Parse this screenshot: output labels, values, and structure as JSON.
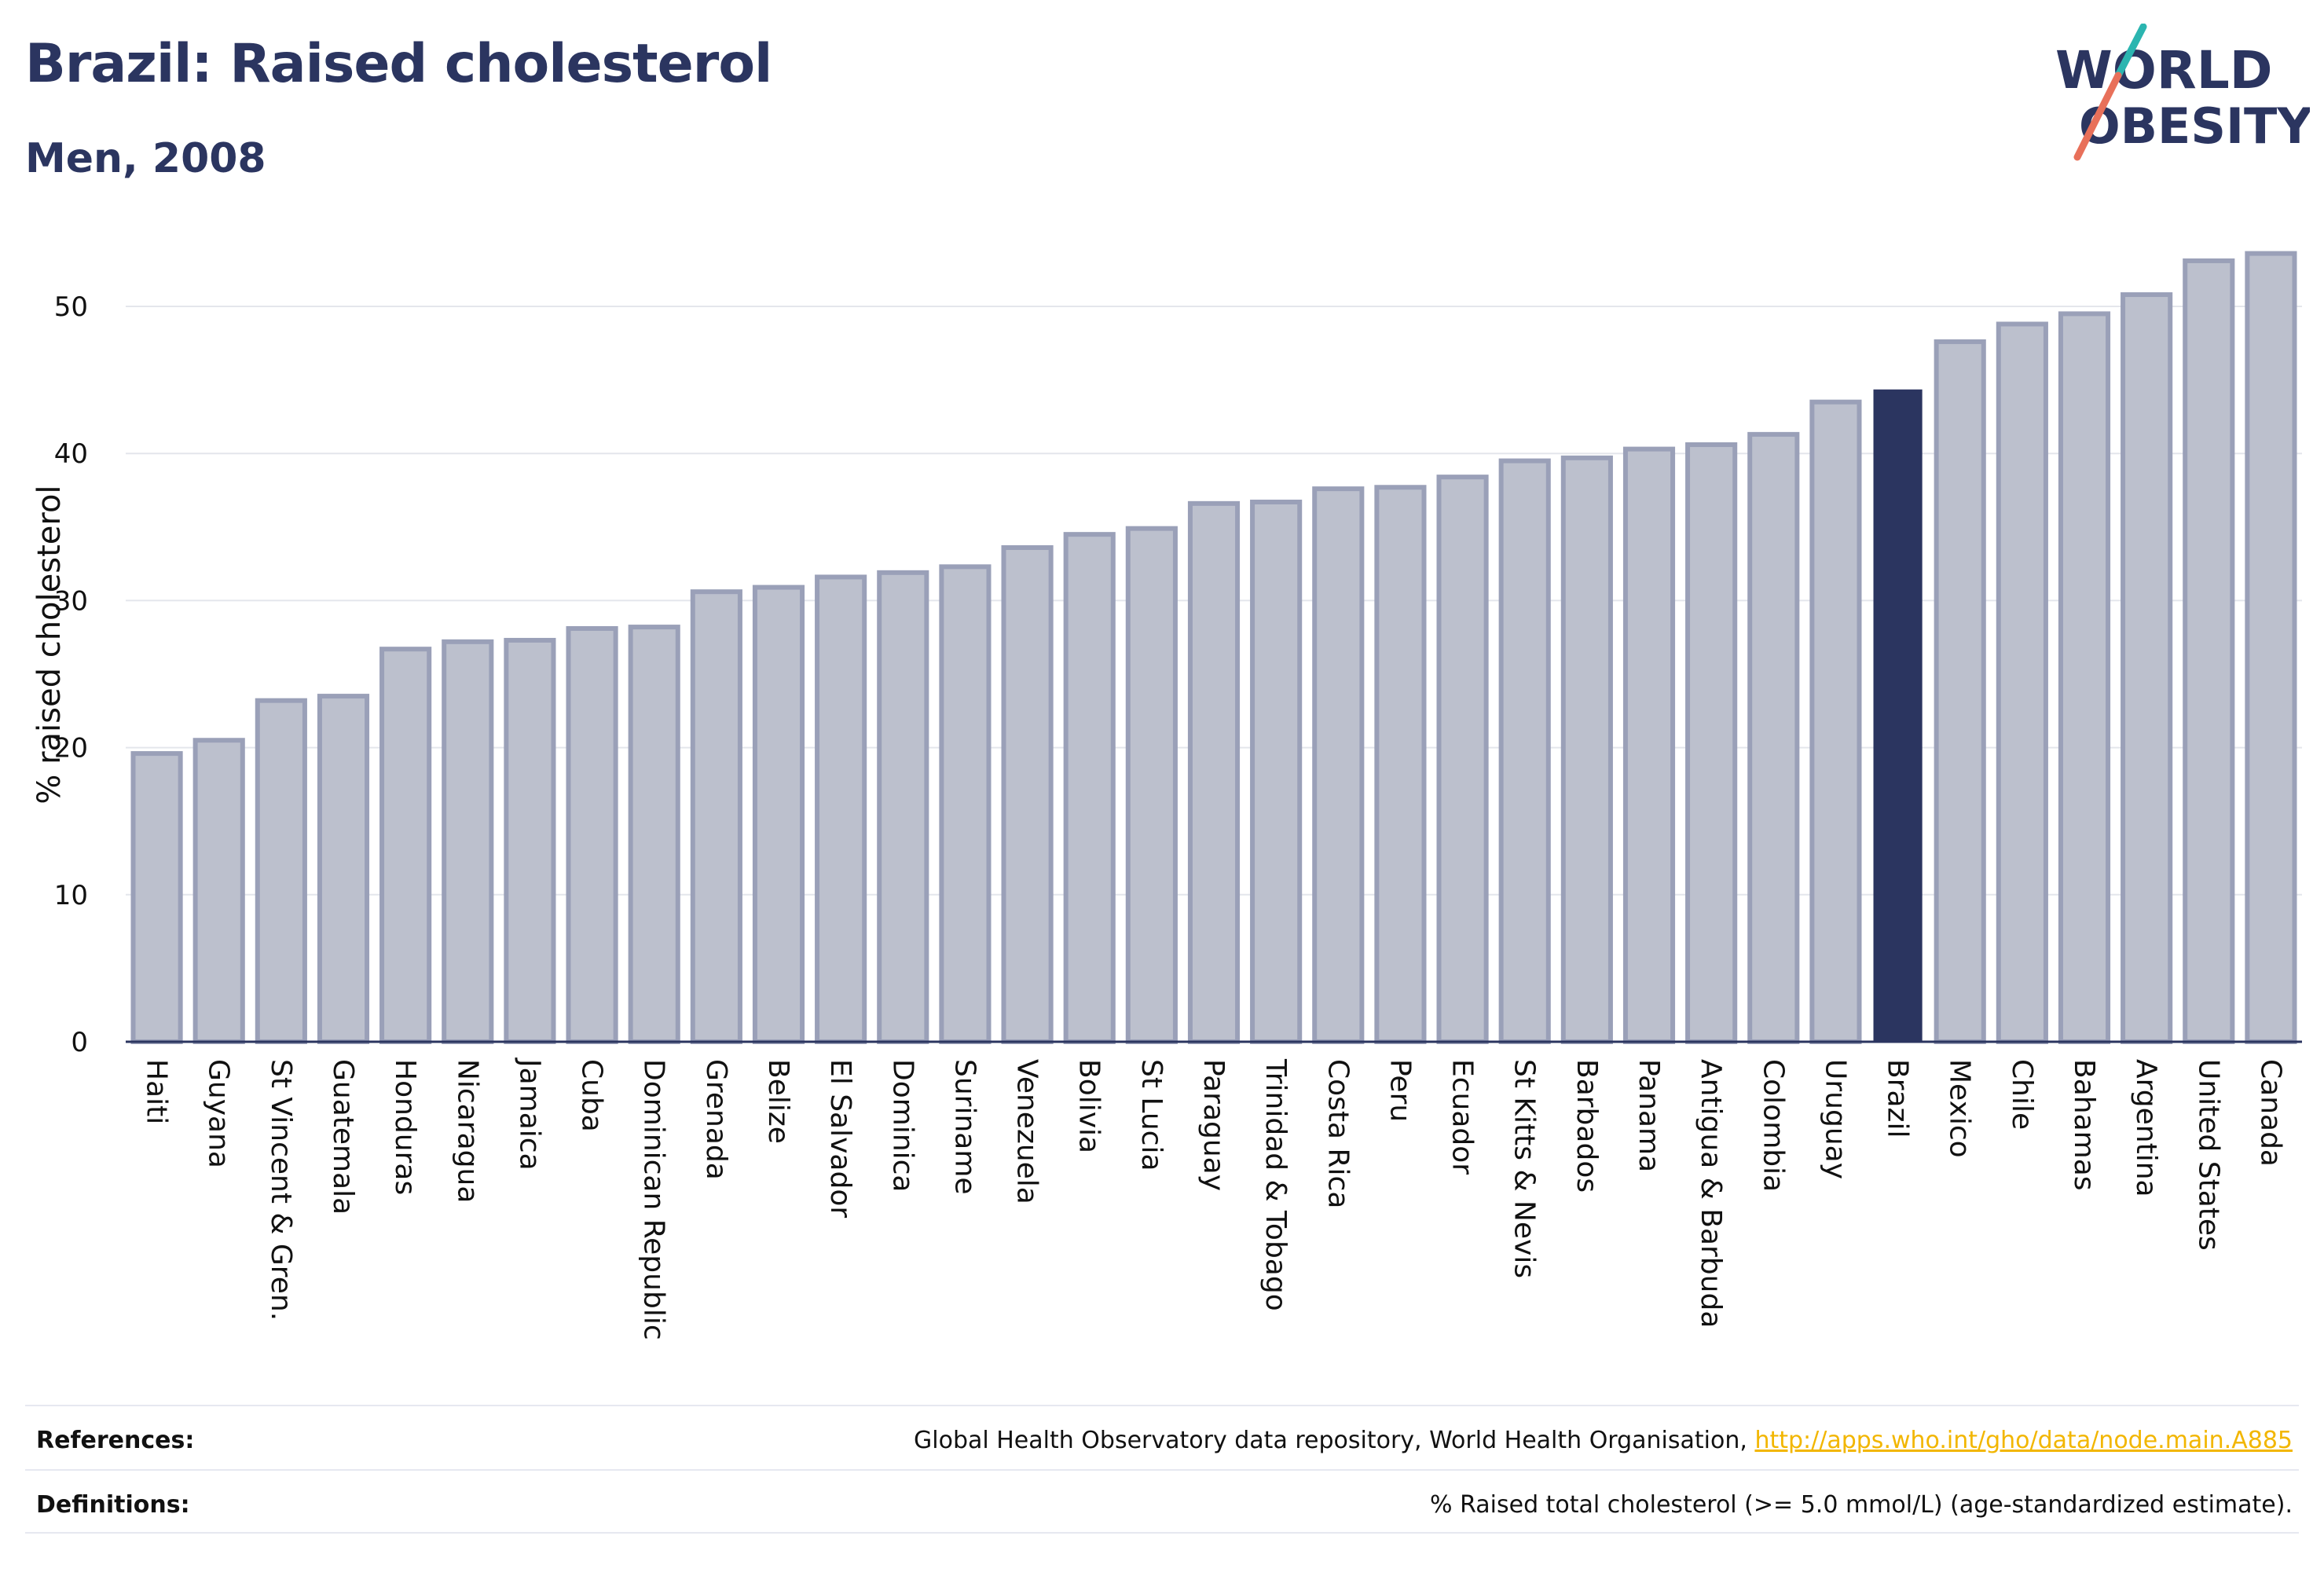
{
  "header": {
    "title": "Brazil: Raised cholesterol",
    "subtitle": "Men, 2008"
  },
  "logo": {
    "line1": "WORLD",
    "line2": "OBESITY",
    "accent_colors": [
      "#e8705a",
      "#2bb5b0"
    ]
  },
  "colors": {
    "bar_default": "#bcc0cd",
    "bar_border": "#9aa0b8",
    "bar_highlight": "#2b3560",
    "text": "#2b3560",
    "grid": "#e4e6ec",
    "link": "#f2b600"
  },
  "chart_data": {
    "type": "bar",
    "title": "",
    "xlabel": "",
    "ylabel": "% raised cholesterol",
    "ylim": [
      0,
      54
    ],
    "yticks": [
      0,
      10,
      20,
      30,
      40,
      50
    ],
    "grid": true,
    "highlight": "Brazil",
    "categories": [
      "Haiti",
      "Guyana",
      "St Vincent & Gren.",
      "Guatemala",
      "Honduras",
      "Nicaragua",
      "Jamaica",
      "Cuba",
      "Dominican Republic",
      "Grenada",
      "Belize",
      "El Salvador",
      "Dominica",
      "Suriname",
      "Venezuela",
      "Bolivia",
      "St Lucia",
      "Paraguay",
      "Trinidad & Tobago",
      "Costa Rica",
      "Peru",
      "Ecuador",
      "St Kitts & Nevis",
      "Barbados",
      "Panama",
      "Antigua & Barbuda",
      "Colombia",
      "Uruguay",
      "Brazil",
      "Mexico",
      "Chile",
      "Bahamas",
      "Argentina",
      "United States",
      "Canada"
    ],
    "values": [
      19.6,
      20.5,
      23.2,
      23.5,
      26.7,
      27.2,
      27.3,
      28.1,
      28.2,
      30.6,
      30.9,
      31.6,
      31.9,
      32.3,
      33.6,
      34.5,
      34.9,
      36.6,
      36.7,
      37.6,
      37.7,
      38.4,
      39.5,
      39.7,
      40.3,
      40.6,
      41.3,
      43.5,
      44.3,
      47.6,
      48.8,
      49.5,
      50.8,
      53.1,
      53.6
    ]
  },
  "footer": {
    "references_label": "References:",
    "references_text": "Global Health Observatory data repository, World Health Organisation, ",
    "references_link": "http://apps.who.int/gho/data/node.main.A885",
    "definitions_label": "Definitions:",
    "definitions_text": "% Raised total cholesterol (>= 5.0 mmol/L) (age-standardized estimate)."
  }
}
